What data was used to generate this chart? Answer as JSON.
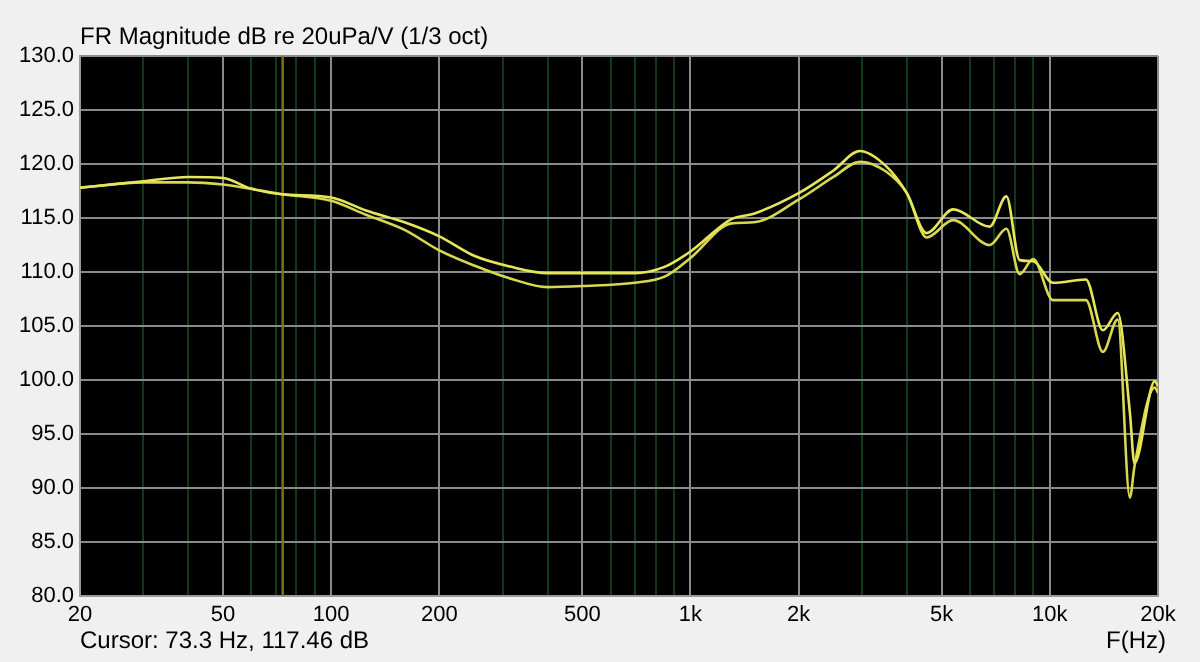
{
  "chart_data": {
    "type": "line",
    "title": "FR Magnitude dB re 20uPa/V (1/3 oct)",
    "xlabel": "F(Hz)",
    "annotations": [
      "Cursor: 73.3 Hz, 117.46 dB"
    ],
    "x": [
      20,
      30,
      40,
      50,
      60,
      73,
      100,
      125,
      160,
      200,
      250,
      315,
      400,
      500,
      700,
      850,
      1000,
      1300,
      1500,
      2000,
      2500,
      2960,
      3500,
      4000,
      4540,
      5380,
      6800,
      7570,
      8240,
      8990,
      10200,
      12600,
      14050,
      15450,
      16700,
      17200,
      19600,
      20000
    ],
    "series": [
      {
        "color": "#e6e65c",
        "values": [
          117.8,
          118.4,
          118.8,
          118.7,
          117.7,
          117.2,
          116.9,
          115.7,
          114.6,
          113.3,
          111.5,
          110.5,
          109.9,
          109.9,
          109.9,
          110.5,
          111.9,
          114.9,
          115.4,
          117.3,
          119.4,
          121.2,
          119.8,
          117.3,
          113.6,
          115.8,
          114.2,
          117.0,
          111.1,
          111.0,
          109.0,
          109.3,
          104.6,
          106.2,
          97.0,
          92.3,
          99.9,
          99.4
        ]
      },
      {
        "color": "#d8d850",
        "values": [
          117.8,
          118.3,
          118.3,
          118.1,
          117.7,
          117.2,
          116.6,
          115.3,
          113.9,
          112.0,
          110.6,
          109.4,
          108.6,
          108.7,
          109.0,
          109.6,
          111.3,
          114.5,
          114.6,
          116.7,
          118.8,
          120.2,
          119.3,
          117.3,
          113.2,
          114.8,
          112.5,
          114.0,
          109.8,
          111.2,
          107.4,
          107.4,
          102.6,
          105.6,
          89.1,
          92.0,
          99.3,
          98.8
        ]
      }
    ],
    "log": "x",
    "xlim": [
      20,
      20000
    ],
    "ylim": [
      80,
      130
    ],
    "xticks": [
      20,
      {
        "value": 30,
        "label": null
      },
      {
        "value": 40,
        "label": null
      },
      50,
      {
        "value": 60,
        "label": null
      },
      {
        "value": 70,
        "label": null
      },
      {
        "value": 80,
        "label": null
      },
      {
        "value": 90,
        "label": null
      },
      100,
      200,
      {
        "value": 300,
        "label": null
      },
      {
        "value": 400,
        "label": null
      },
      500,
      {
        "value": 600,
        "label": null
      },
      {
        "value": 700,
        "label": null
      },
      {
        "value": 800,
        "label": null
      },
      {
        "value": 900,
        "label": null
      },
      {
        "value": 1000,
        "label": "1k"
      },
      {
        "value": 2000,
        "label": "2k"
      },
      {
        "value": 3000,
        "label": null
      },
      {
        "value": 4000,
        "label": null
      },
      {
        "value": 5000,
        "label": "5k"
      },
      {
        "value": 6000,
        "label": null
      },
      {
        "value": 7000,
        "label": null
      },
      {
        "value": 8000,
        "label": null
      },
      {
        "value": 9000,
        "label": null
      },
      {
        "value": 10000,
        "label": "10k"
      },
      {
        "value": 20000,
        "label": "20k"
      }
    ],
    "yticks": [
      {
        "value": 80,
        "label": "80.0"
      },
      {
        "value": 85,
        "label": "85.0"
      },
      {
        "value": 90,
        "label": "90.0"
      },
      {
        "value": 95,
        "label": "95.0"
      },
      {
        "value": 100,
        "label": "100.0"
      },
      {
        "value": 105,
        "label": "105.0"
      },
      {
        "value": 110,
        "label": "110.0"
      },
      {
        "value": 115,
        "label": "115.0"
      },
      {
        "value": 120,
        "label": "120.0"
      },
      {
        "value": 125,
        "label": "125.0"
      },
      {
        "value": 130,
        "label": "130.0"
      }
    ],
    "grid": true,
    "legend": false,
    "marker": "none",
    "line_style": "solid",
    "ref_lines": [
      {
        "axis": "x",
        "value": 73.3,
        "color": "#7a7a10"
      }
    ]
  }
}
